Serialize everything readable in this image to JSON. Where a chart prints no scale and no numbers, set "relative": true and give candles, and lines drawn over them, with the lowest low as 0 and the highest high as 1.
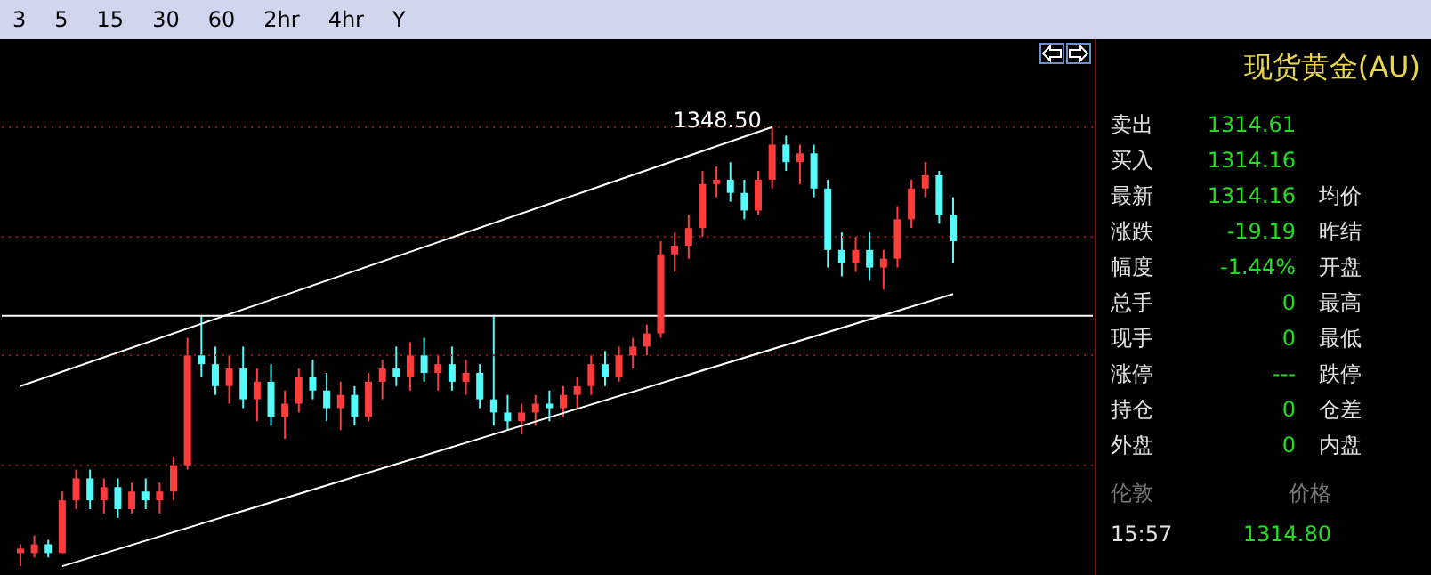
{
  "chart_data": [
    {
      "type": "candlestick",
      "relative": true,
      "categories": [
        null,
        null,
        null,
        null,
        null,
        null,
        null,
        null,
        null,
        null,
        null,
        null,
        null,
        null,
        null,
        null,
        null,
        null,
        null,
        null,
        null,
        null,
        null,
        null,
        null,
        null,
        null,
        null,
        null,
        null,
        null,
        null,
        null,
        null,
        null,
        null,
        null,
        null,
        null,
        null,
        null,
        null,
        null,
        null,
        null,
        null,
        null,
        null,
        null,
        null,
        null,
        null,
        null,
        null,
        null,
        null,
        null,
        null,
        null,
        null,
        null,
        null,
        null,
        null,
        null,
        null,
        null,
        null
      ],
      "ohlc": [
        [
          0.03,
          0.05,
          0,
          0.04
        ],
        [
          0.03,
          0.07,
          0.02,
          0.05
        ],
        [
          0.05,
          0.06,
          0.02,
          0.03
        ],
        [
          0.03,
          0.17,
          0.03,
          0.15
        ],
        [
          0.15,
          0.22,
          0.13,
          0.2
        ],
        [
          0.2,
          0.22,
          0.13,
          0.15
        ],
        [
          0.15,
          0.2,
          0.12,
          0.18
        ],
        [
          0.18,
          0.2,
          0.11,
          0.13
        ],
        [
          0.13,
          0.19,
          0.12,
          0.17
        ],
        [
          0.17,
          0.2,
          0.13,
          0.15
        ],
        [
          0.15,
          0.19,
          0.12,
          0.17
        ],
        [
          0.17,
          0.25,
          0.15,
          0.23
        ],
        [
          0.23,
          0.52,
          0.22,
          0.48
        ],
        [
          0.48,
          0.57,
          0.43,
          0.46
        ],
        [
          0.46,
          0.5,
          0.39,
          0.41
        ],
        [
          0.41,
          0.48,
          0.37,
          0.45
        ],
        [
          0.45,
          0.5,
          0.36,
          0.38
        ],
        [
          0.38,
          0.45,
          0.33,
          0.42
        ],
        [
          0.42,
          0.46,
          0.32,
          0.34
        ],
        [
          0.34,
          0.4,
          0.29,
          0.37
        ],
        [
          0.37,
          0.45,
          0.35,
          0.43
        ],
        [
          0.43,
          0.47,
          0.38,
          0.4
        ],
        [
          0.4,
          0.44,
          0.33,
          0.36
        ],
        [
          0.36,
          0.42,
          0.31,
          0.39
        ],
        [
          0.39,
          0.41,
          0.32,
          0.34
        ],
        [
          0.34,
          0.44,
          0.33,
          0.42
        ],
        [
          0.42,
          0.47,
          0.38,
          0.45
        ],
        [
          0.45,
          0.5,
          0.41,
          0.43
        ],
        [
          0.43,
          0.51,
          0.4,
          0.48
        ],
        [
          0.48,
          0.52,
          0.42,
          0.44
        ],
        [
          0.44,
          0.48,
          0.4,
          0.46
        ],
        [
          0.46,
          0.5,
          0.4,
          0.42
        ],
        [
          0.42,
          0.47,
          0.39,
          0.44
        ],
        [
          0.44,
          0.46,
          0.36,
          0.38
        ],
        [
          0.38,
          0.57,
          0.32,
          0.35
        ],
        [
          0.35,
          0.39,
          0.31,
          0.33
        ],
        [
          0.33,
          0.37,
          0.3,
          0.35
        ],
        [
          0.35,
          0.39,
          0.32,
          0.37
        ],
        [
          0.37,
          0.4,
          0.33,
          0.36
        ],
        [
          0.36,
          0.41,
          0.34,
          0.39
        ],
        [
          0.39,
          0.43,
          0.36,
          0.41
        ],
        [
          0.41,
          0.48,
          0.39,
          0.46
        ],
        [
          0.46,
          0.49,
          0.41,
          0.43
        ],
        [
          0.43,
          0.5,
          0.42,
          0.48
        ],
        [
          0.48,
          0.52,
          0.45,
          0.5
        ],
        [
          0.5,
          0.55,
          0.48,
          0.53
        ],
        [
          0.53,
          0.74,
          0.52,
          0.71
        ],
        [
          0.71,
          0.76,
          0.67,
          0.73
        ],
        [
          0.73,
          0.8,
          0.7,
          0.77
        ],
        [
          0.77,
          0.9,
          0.75,
          0.87
        ],
        [
          0.87,
          0.91,
          0.84,
          0.88
        ],
        [
          0.88,
          0.92,
          0.83,
          0.85
        ],
        [
          0.85,
          0.88,
          0.79,
          0.81
        ],
        [
          0.81,
          0.9,
          0.8,
          0.88
        ],
        [
          0.88,
          1,
          0.86,
          0.96
        ],
        [
          0.96,
          0.98,
          0.9,
          0.92
        ],
        [
          0.92,
          0.96,
          0.87,
          0.94
        ],
        [
          0.94,
          0.96,
          0.84,
          0.86
        ],
        [
          0.86,
          0.88,
          0.68,
          0.72
        ],
        [
          0.72,
          0.76,
          0.66,
          0.69
        ],
        [
          0.69,
          0.75,
          0.67,
          0.72
        ],
        [
          0.72,
          0.76,
          0.65,
          0.68
        ],
        [
          0.68,
          0.72,
          0.63,
          0.7
        ],
        [
          0.7,
          0.82,
          0.68,
          0.79
        ],
        [
          0.79,
          0.88,
          0.77,
          0.86
        ],
        [
          0.86,
          0.92,
          0.84,
          0.89
        ],
        [
          0.89,
          0.9,
          0.78,
          0.8
        ],
        [
          0.8,
          0.84,
          0.69,
          0.74
        ]
      ],
      "colors": [
        "#ff3c3c",
        "#ff3c3c",
        "#54fcfc",
        "#ff3c3c",
        "#ff3c3c",
        "#54fcfc",
        "#ff3c3c",
        "#54fcfc",
        "#ff3c3c",
        "#54fcfc",
        "#ff3c3c",
        "#ff3c3c",
        "#ff3c3c",
        "#54fcfc",
        "#54fcfc",
        "#ff3c3c",
        "#54fcfc",
        "#ff3c3c",
        "#54fcfc",
        "#ff3c3c",
        "#ff3c3c",
        "#54fcfc",
        "#54fcfc",
        "#ff3c3c",
        "#54fcfc",
        "#ff3c3c",
        "#ff3c3c",
        "#54fcfc",
        "#ff3c3c",
        "#54fcfc",
        "#ff3c3c",
        "#54fcfc",
        "#ff3c3c",
        "#54fcfc",
        "#54fcfc",
        "#54fcfc",
        "#ff3c3c",
        "#ff3c3c",
        "#54fcfc",
        "#ff3c3c",
        "#ff3c3c",
        "#ff3c3c",
        "#54fcfc",
        "#ff3c3c",
        "#ff3c3c",
        "#ff3c3c",
        "#ff3c3c",
        "#ff3c3c",
        "#ff3c3c",
        "#ff3c3c",
        "#ff3c3c",
        "#54fcfc",
        "#54fcfc",
        "#ff3c3c",
        "#ff3c3c",
        "#54fcfc",
        "#ff3c3c",
        "#54fcfc",
        "#54fcfc",
        "#54fcfc",
        "#ff3c3c",
        "#54fcfc",
        "#ff3c3c",
        "#ff3c3c",
        "#ff3c3c",
        "#ff3c3c",
        "#54fcfc",
        "#54fcfc"
      ],
      "series": [
        {
          "type": "line",
          "color": "#ffffff",
          "values": [
            0.41,
            null,
            null,
            null,
            null,
            null,
            null,
            null,
            null,
            null,
            null,
            null,
            null,
            null,
            null,
            null,
            null,
            null,
            null,
            null,
            null,
            null,
            null,
            null,
            null,
            null,
            null,
            null,
            null,
            null,
            null,
            null,
            null,
            null,
            null,
            null,
            null,
            null,
            null,
            null,
            null,
            null,
            null,
            null,
            null,
            null,
            null,
            null,
            null,
            null,
            null,
            null,
            null,
            null,
            1.0,
            null,
            null,
            null,
            null,
            null,
            null,
            null,
            null,
            null,
            null,
            null,
            null,
            null
          ]
        },
        {
          "type": "line",
          "color": "#ffffff",
          "values": [
            null,
            null,
            null,
            0,
            null,
            null,
            null,
            null,
            null,
            null,
            null,
            null,
            null,
            null,
            null,
            null,
            null,
            null,
            null,
            null,
            null,
            null,
            null,
            null,
            null,
            null,
            null,
            null,
            null,
            null,
            null,
            null,
            null,
            null,
            null,
            null,
            null,
            null,
            null,
            null,
            null,
            null,
            null,
            null,
            null,
            null,
            null,
            null,
            null,
            null,
            null,
            null,
            null,
            null,
            null,
            null,
            null,
            null,
            null,
            null,
            null,
            null,
            null,
            null,
            null,
            null,
            null,
            0.62
          ]
        }
      ],
      "ref_lines": [
        {
          "axis": "y",
          "value": 1.0,
          "color": "#a01010",
          "line_style": "dotted"
        },
        {
          "axis": "y",
          "value": 0.75,
          "color": "#a01010",
          "line_style": "dotted"
        },
        {
          "axis": "y",
          "value": 0.48,
          "color": "#a01010",
          "line_style": "dotted"
        },
        {
          "axis": "y",
          "value": 0.23,
          "color": "#a01010",
          "line_style": "dotted"
        },
        {
          "axis": "y",
          "value": 0.57,
          "color": "#ffffff",
          "line_style": "solid"
        }
      ],
      "annotations": [
        "3",
        "5",
        "15",
        "30",
        "60",
        "2hr",
        "4hr",
        "Y",
        {
          "text": "1348.50",
          "y": 1
        }
      ]
    },
    {
      "type": "other",
      "title": "现货黄金(AU)",
      "annotations": [
        "卖出",
        "1314.61",
        "买入",
        "1314.16",
        "最新",
        "1314.16",
        "均价",
        "涨跌",
        "-19.19",
        "昨结",
        "幅度",
        "-1.44%",
        "开盘",
        "总手",
        "0",
        "最高",
        "现手",
        "0",
        "最低",
        "涨停",
        "---",
        "跌停",
        "持仓",
        "0",
        "仓差",
        "外盘",
        "0",
        "内盘",
        "伦敦",
        "价格",
        "15:57",
        "1314.80"
      ]
    }
  ]
}
